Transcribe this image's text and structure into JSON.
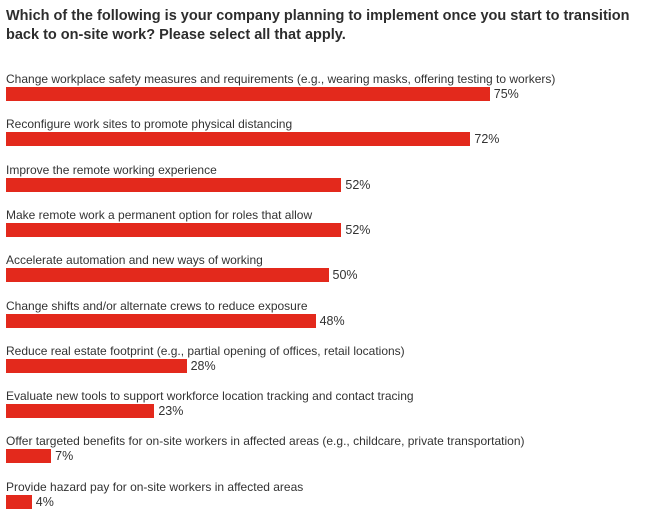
{
  "chart_data": {
    "type": "bar",
    "orientation": "horizontal",
    "title": "Which of the following is your company planning to implement once you start to transition back to on-site work? Please select all that apply.",
    "categories": [
      "Change workplace safety measures and requirements (e.g., wearing masks, offering testing to workers)",
      "Reconfigure work sites to promote physical distancing",
      "Improve the remote working experience",
      "Make remote work a permanent option for roles that allow",
      "Accelerate automation and new ways of working",
      "Change shifts and/or alternate crews to reduce exposure",
      "Reduce real estate footprint (e.g., partial opening of offices, retail locations)",
      "Evaluate new tools to support workforce location tracking and contact tracing",
      "Offer targeted benefits for on-site workers in affected areas (e.g., childcare, private transportation)",
      "Provide hazard pay for on-site workers in affected areas"
    ],
    "values": [
      75,
      72,
      52,
      52,
      50,
      48,
      28,
      23,
      7,
      4
    ],
    "value_labels": [
      "75%",
      "72%",
      "52%",
      "52%",
      "50%",
      "48%",
      "28%",
      "23%",
      "7%",
      "4%"
    ],
    "unit": "%",
    "xlim": [
      0,
      100
    ],
    "grid": false,
    "legend": "none",
    "colors": {
      "bar": "#e3291c",
      "text": "#333333"
    }
  }
}
